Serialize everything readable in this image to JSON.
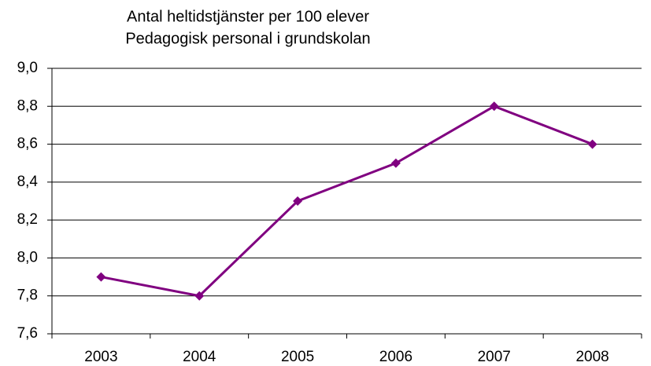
{
  "chart_data": {
    "type": "line",
    "title": "Antal heltidstjänster per 100 elever",
    "subtitle": "Pedagogisk personal i grundskolan",
    "categories": [
      "2003",
      "2004",
      "2005",
      "2006",
      "2007",
      "2008"
    ],
    "values": [
      7.9,
      7.8,
      8.3,
      8.5,
      8.8,
      8.6
    ],
    "color": "#800080",
    "ylim": [
      7.6,
      9.0
    ],
    "yticks": [
      {
        "value": 7.6,
        "label": "7,6"
      },
      {
        "value": 7.8,
        "label": "7,8"
      },
      {
        "value": 8.0,
        "label": "8,0"
      },
      {
        "value": 8.2,
        "label": "8,2"
      },
      {
        "value": 8.4,
        "label": "8,4"
      },
      {
        "value": 8.6,
        "label": "8,6"
      },
      {
        "value": 8.8,
        "label": "8,8"
      },
      {
        "value": 9.0,
        "label": "9,0"
      }
    ],
    "grid": true
  }
}
